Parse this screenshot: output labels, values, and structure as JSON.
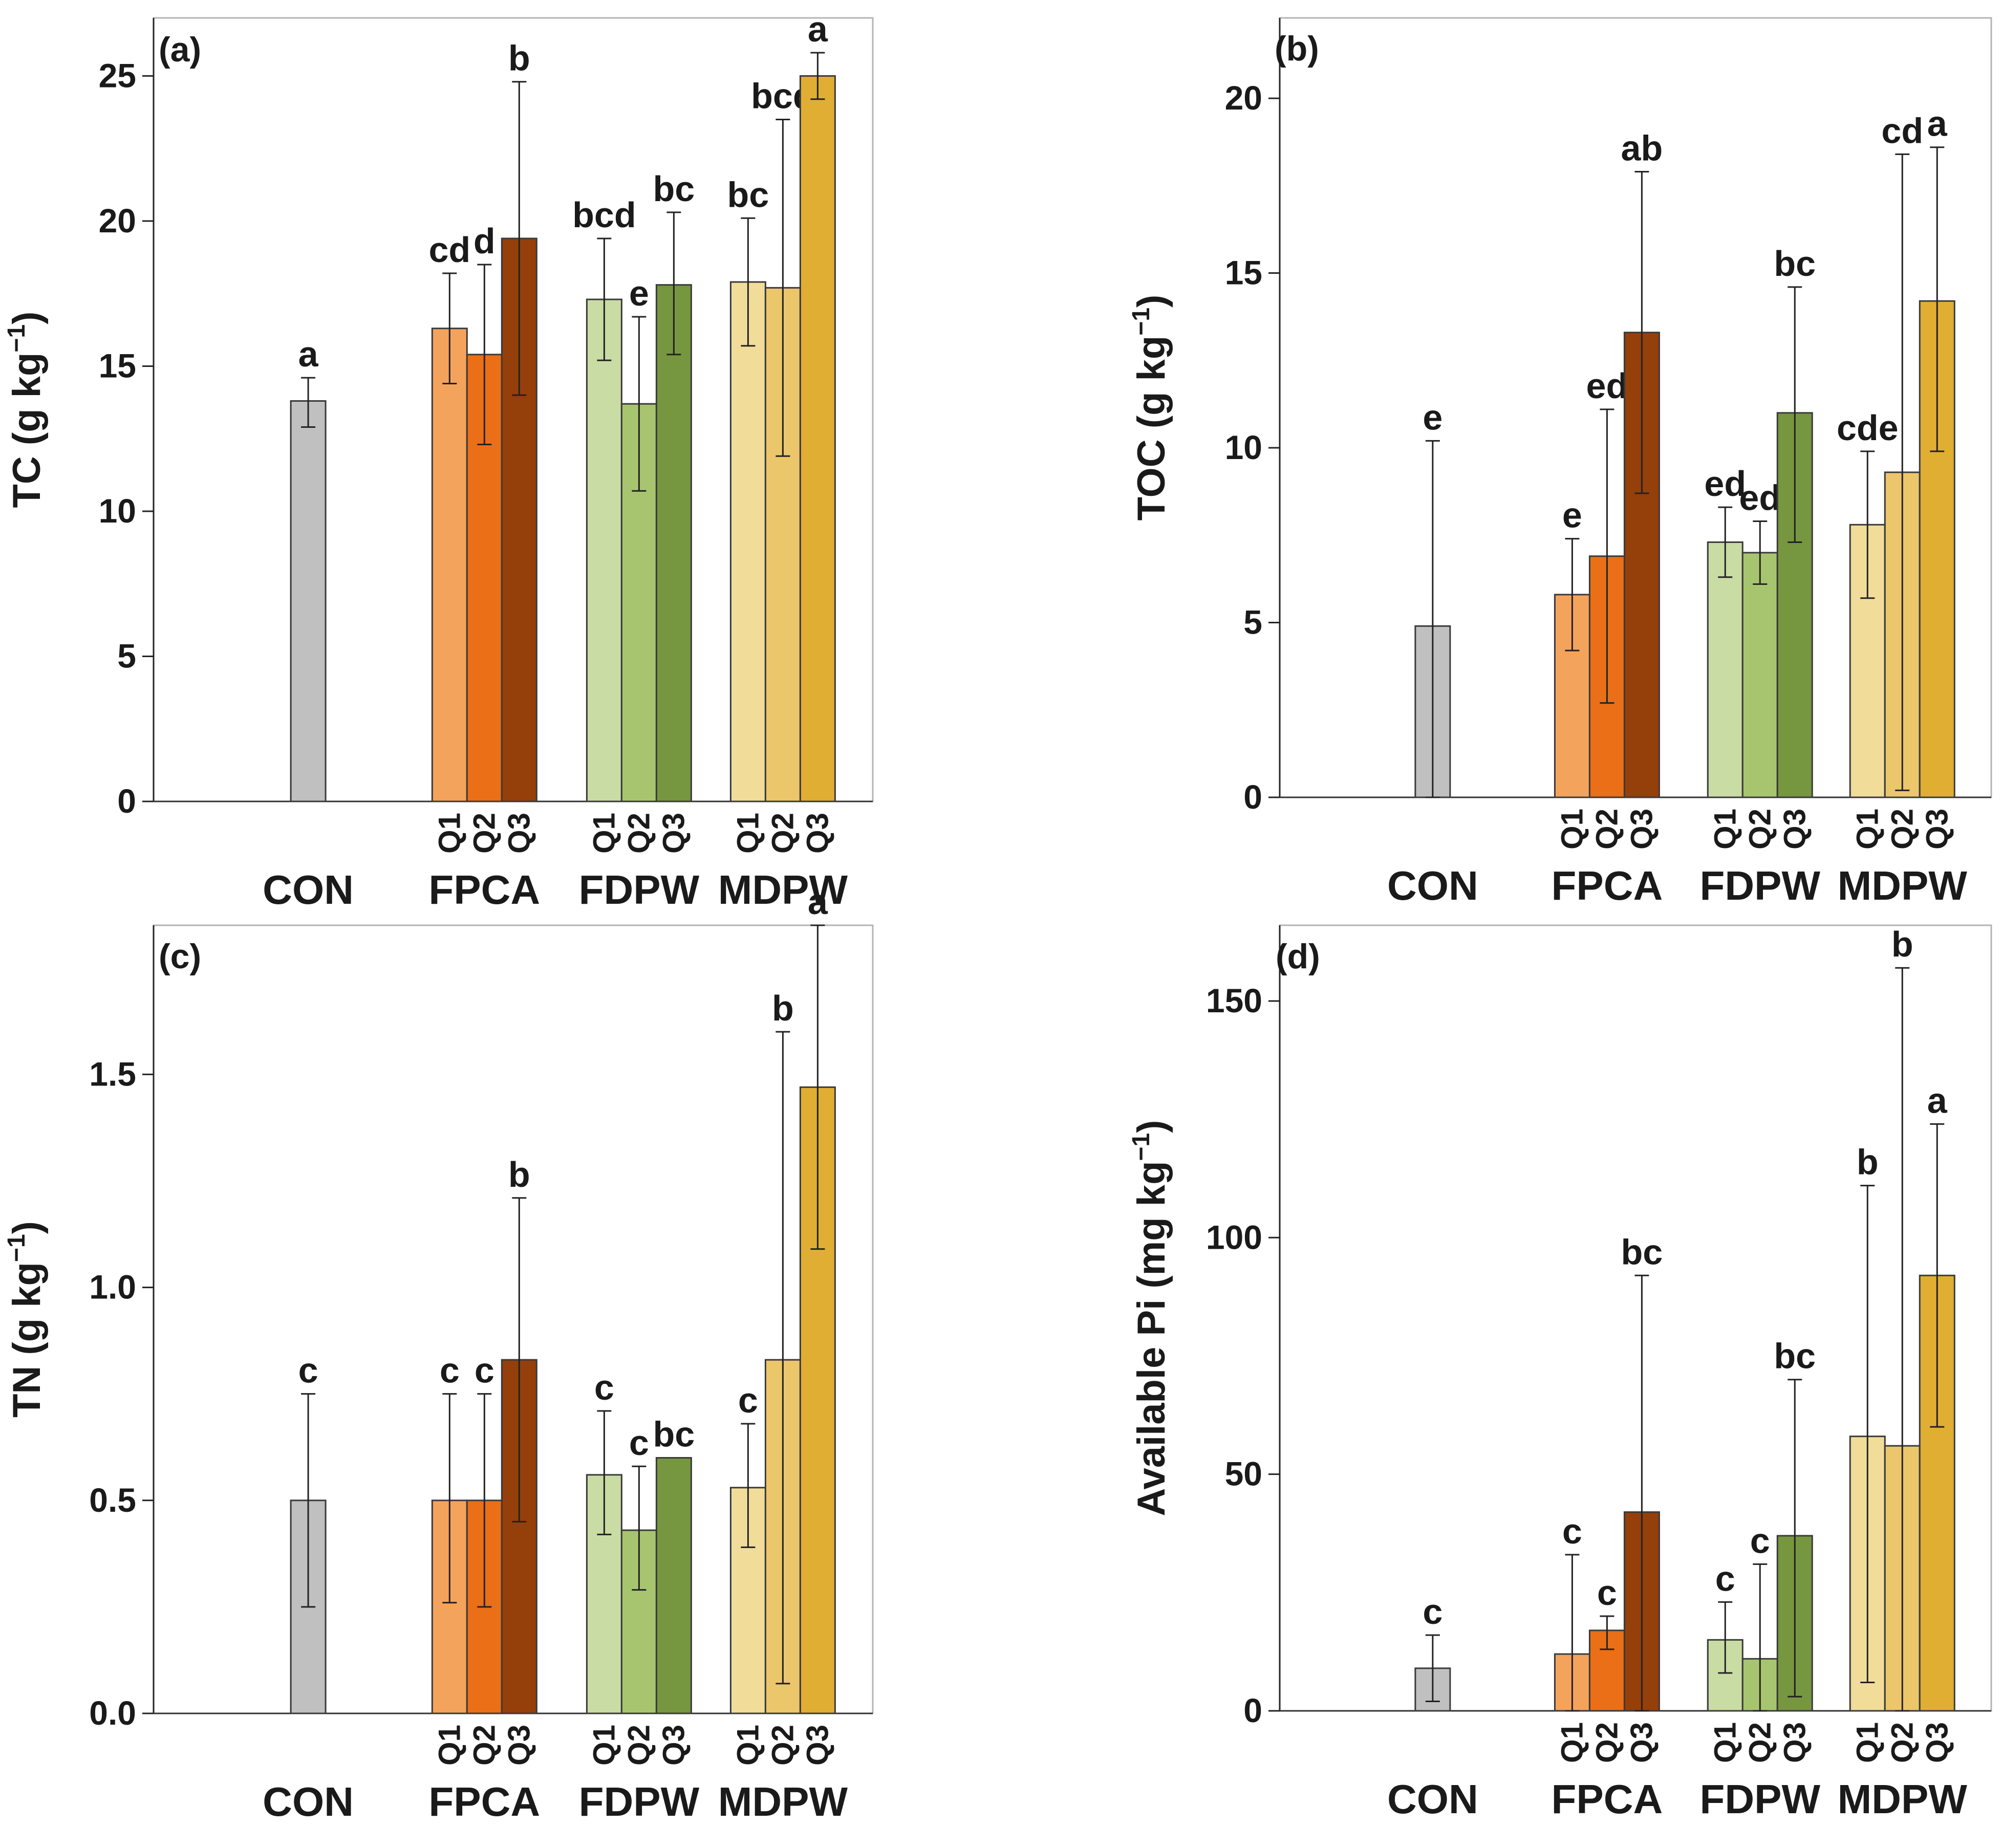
{
  "chart_data": [
    {
      "type": "bar",
      "panel": "(a)",
      "ylabel_main": "TC (g kg",
      "ylabel_sup": "−1",
      "ylabel_close": ")",
      "ylim": [
        0,
        27
      ],
      "yticks": [
        "0",
        "5",
        "10",
        "15",
        "20",
        "25"
      ],
      "groups": [
        "CON",
        "FPCA",
        "FDPW",
        "MDPW"
      ],
      "sublabels": [
        "Q1",
        "Q2",
        "Q3"
      ],
      "colors": {
        "CON": "#c0c0c0",
        "FPCA": [
          "#f4a35c",
          "#ea6f16",
          "#953f0b"
        ],
        "FDPW": [
          "#c9dca3",
          "#a7c56f",
          "#779640"
        ],
        "MDPW": [
          "#f1dc9a",
          "#ebc66a",
          "#e0ae33"
        ]
      },
      "bars": [
        {
          "group": "CON",
          "sub": "",
          "value": 13.8,
          "err_low": 12.9,
          "err_high": 14.6,
          "letter": "a"
        },
        {
          "group": "FPCA",
          "sub": "Q1",
          "value": 16.3,
          "err_low": 14.4,
          "err_high": 18.2,
          "letter": "cd"
        },
        {
          "group": "FPCA",
          "sub": "Q2",
          "value": 15.4,
          "err_low": 12.3,
          "err_high": 18.5,
          "letter": "d"
        },
        {
          "group": "FPCA",
          "sub": "Q3",
          "value": 19.4,
          "err_low": 14.0,
          "err_high": 24.8,
          "letter": "b"
        },
        {
          "group": "FDPW",
          "sub": "Q1",
          "value": 17.3,
          "err_low": 15.2,
          "err_high": 19.4,
          "letter": "bcd"
        },
        {
          "group": "FDPW",
          "sub": "Q2",
          "value": 13.7,
          "err_low": 10.7,
          "err_high": 16.7,
          "letter": "e"
        },
        {
          "group": "FDPW",
          "sub": "Q3",
          "value": 17.8,
          "err_low": 15.4,
          "err_high": 20.3,
          "letter": "bc"
        },
        {
          "group": "MDPW",
          "sub": "Q1",
          "value": 17.9,
          "err_low": 15.7,
          "err_high": 20.1,
          "letter": "bc"
        },
        {
          "group": "MDPW",
          "sub": "Q2",
          "value": 17.7,
          "err_low": 11.9,
          "err_high": 23.5,
          "letter": "bcd"
        },
        {
          "group": "MDPW",
          "sub": "Q3",
          "value": 25.0,
          "err_low": 24.2,
          "err_high": 25.8,
          "letter": "a"
        }
      ]
    },
    {
      "type": "bar",
      "panel": "(b)",
      "ylabel_main": "TOC (g kg",
      "ylabel_sup": "−1",
      "ylabel_close": ")",
      "ylim": [
        0,
        22.3
      ],
      "yticks": [
        "0",
        "5",
        "10",
        "15",
        "20"
      ],
      "groups": [
        "CON",
        "FPCA",
        "FDPW",
        "MDPW"
      ],
      "sublabels": [
        "Q1",
        "Q2",
        "Q3"
      ],
      "colors": {
        "CON": "#c0c0c0",
        "FPCA": [
          "#f4a35c",
          "#ea6f16",
          "#953f0b"
        ],
        "FDPW": [
          "#c9dca3",
          "#a7c56f",
          "#779640"
        ],
        "MDPW": [
          "#f1dc9a",
          "#ebc66a",
          "#e0ae33"
        ]
      },
      "bars": [
        {
          "group": "CON",
          "sub": "",
          "value": 4.9,
          "err_low": 0.0,
          "err_high": 10.2,
          "letter": "e"
        },
        {
          "group": "FPCA",
          "sub": "Q1",
          "value": 5.8,
          "err_low": 4.2,
          "err_high": 7.4,
          "letter": "e"
        },
        {
          "group": "FPCA",
          "sub": "Q2",
          "value": 6.9,
          "err_low": 2.7,
          "err_high": 11.1,
          "letter": "ed"
        },
        {
          "group": "FPCA",
          "sub": "Q3",
          "value": 13.3,
          "err_low": 8.7,
          "err_high": 17.9,
          "letter": "ab"
        },
        {
          "group": "FDPW",
          "sub": "Q1",
          "value": 7.3,
          "err_low": 6.3,
          "err_high": 8.3,
          "letter": "ed"
        },
        {
          "group": "FDPW",
          "sub": "Q2",
          "value": 7.0,
          "err_low": 6.1,
          "err_high": 7.9,
          "letter": "ed"
        },
        {
          "group": "FDPW",
          "sub": "Q3",
          "value": 11.0,
          "err_low": 7.3,
          "err_high": 14.6,
          "letter": "bc"
        },
        {
          "group": "MDPW",
          "sub": "Q1",
          "value": 7.8,
          "err_low": 5.7,
          "err_high": 9.9,
          "letter": "cde"
        },
        {
          "group": "MDPW",
          "sub": "Q2",
          "value": 9.3,
          "err_low": 0.2,
          "err_high": 18.4,
          "letter": "cd"
        },
        {
          "group": "MDPW",
          "sub": "Q3",
          "value": 14.2,
          "err_low": 9.9,
          "err_high": 18.6,
          "letter": "a"
        }
      ]
    },
    {
      "type": "bar",
      "panel": "(c)",
      "ylabel_main": "TN (g kg",
      "ylabel_sup": "−1",
      "ylabel_close": ")",
      "ylim": [
        0,
        1.85
      ],
      "yticks": [
        "0.0",
        "0.5",
        "1.0",
        "1.5"
      ],
      "groups": [
        "CON",
        "FPCA",
        "FDPW",
        "MDPW"
      ],
      "sublabels": [
        "Q1",
        "Q2",
        "Q3"
      ],
      "colors": {
        "CON": "#c0c0c0",
        "FPCA": [
          "#f4a35c",
          "#ea6f16",
          "#953f0b"
        ],
        "FDPW": [
          "#c9dca3",
          "#a7c56f",
          "#779640"
        ],
        "MDPW": [
          "#f1dc9a",
          "#ebc66a",
          "#e0ae33"
        ]
      },
      "bars": [
        {
          "group": "CON",
          "sub": "",
          "value": 0.5,
          "err_low": 0.25,
          "err_high": 0.75,
          "letter": "c"
        },
        {
          "group": "FPCA",
          "sub": "Q1",
          "value": 0.5,
          "err_low": 0.26,
          "err_high": 0.75,
          "letter": "c"
        },
        {
          "group": "FPCA",
          "sub": "Q2",
          "value": 0.5,
          "err_low": 0.25,
          "err_high": 0.75,
          "letter": "c"
        },
        {
          "group": "FPCA",
          "sub": "Q3",
          "value": 0.83,
          "err_low": 0.45,
          "err_high": 1.21,
          "letter": "b"
        },
        {
          "group": "FDPW",
          "sub": "Q1",
          "value": 0.56,
          "err_low": 0.42,
          "err_high": 0.71,
          "letter": "c"
        },
        {
          "group": "FDPW",
          "sub": "Q2",
          "value": 0.43,
          "err_low": 0.29,
          "err_high": 0.58,
          "letter": "c"
        },
        {
          "group": "FDPW",
          "sub": "Q3",
          "value": 0.6,
          "err_low": 0.6,
          "err_high": 0.6,
          "letter": "bc"
        },
        {
          "group": "MDPW",
          "sub": "Q1",
          "value": 0.53,
          "err_low": 0.39,
          "err_high": 0.68,
          "letter": "c"
        },
        {
          "group": "MDPW",
          "sub": "Q2",
          "value": 0.83,
          "err_low": 0.07,
          "err_high": 1.6,
          "letter": "b"
        },
        {
          "group": "MDPW",
          "sub": "Q3",
          "value": 1.47,
          "err_low": 1.09,
          "err_high": 1.85,
          "letter": "a"
        }
      ]
    },
    {
      "type": "bar",
      "panel": "(d)",
      "ylabel_main": "Available Pi (mg kg",
      "ylabel_sup": "−1",
      "ylabel_close": ")",
      "ylim": [
        0,
        166
      ],
      "yticks": [
        "0",
        "50",
        "100",
        "150"
      ],
      "groups": [
        "CON",
        "FPCA",
        "FDPW",
        "MDPW"
      ],
      "sublabels": [
        "Q1",
        "Q2",
        "Q3"
      ],
      "colors": {
        "CON": "#c0c0c0",
        "FPCA": [
          "#f4a35c",
          "#ea6f16",
          "#953f0b"
        ],
        "FDPW": [
          "#c9dca3",
          "#a7c56f",
          "#779640"
        ],
        "MDPW": [
          "#f1dc9a",
          "#ebc66a",
          "#e0ae33"
        ]
      },
      "bars": [
        {
          "group": "CON",
          "sub": "",
          "value": 9,
          "err_low": 2,
          "err_high": 16,
          "letter": "c"
        },
        {
          "group": "FPCA",
          "sub": "Q1",
          "value": 12,
          "err_low": 0,
          "err_high": 33,
          "letter": "c"
        },
        {
          "group": "FPCA",
          "sub": "Q2",
          "value": 17,
          "err_low": 13,
          "err_high": 20,
          "letter": "c"
        },
        {
          "group": "FPCA",
          "sub": "Q3",
          "value": 42,
          "err_low": 0,
          "err_high": 92,
          "letter": "bc"
        },
        {
          "group": "FDPW",
          "sub": "Q1",
          "value": 15,
          "err_low": 8,
          "err_high": 23,
          "letter": "c"
        },
        {
          "group": "FDPW",
          "sub": "Q2",
          "value": 11,
          "err_low": 0,
          "err_high": 31,
          "letter": "c"
        },
        {
          "group": "FDPW",
          "sub": "Q3",
          "value": 37,
          "err_low": 3,
          "err_high": 70,
          "letter": "bc"
        },
        {
          "group": "MDPW",
          "sub": "Q1",
          "value": 58,
          "err_low": 6,
          "err_high": 111,
          "letter": "b"
        },
        {
          "group": "MDPW",
          "sub": "Q2",
          "value": 56,
          "err_low": 0,
          "err_high": 157,
          "letter": "b"
        },
        {
          "group": "MDPW",
          "sub": "Q3",
          "value": 92,
          "err_low": 60,
          "err_high": 124,
          "letter": "a"
        }
      ]
    }
  ]
}
